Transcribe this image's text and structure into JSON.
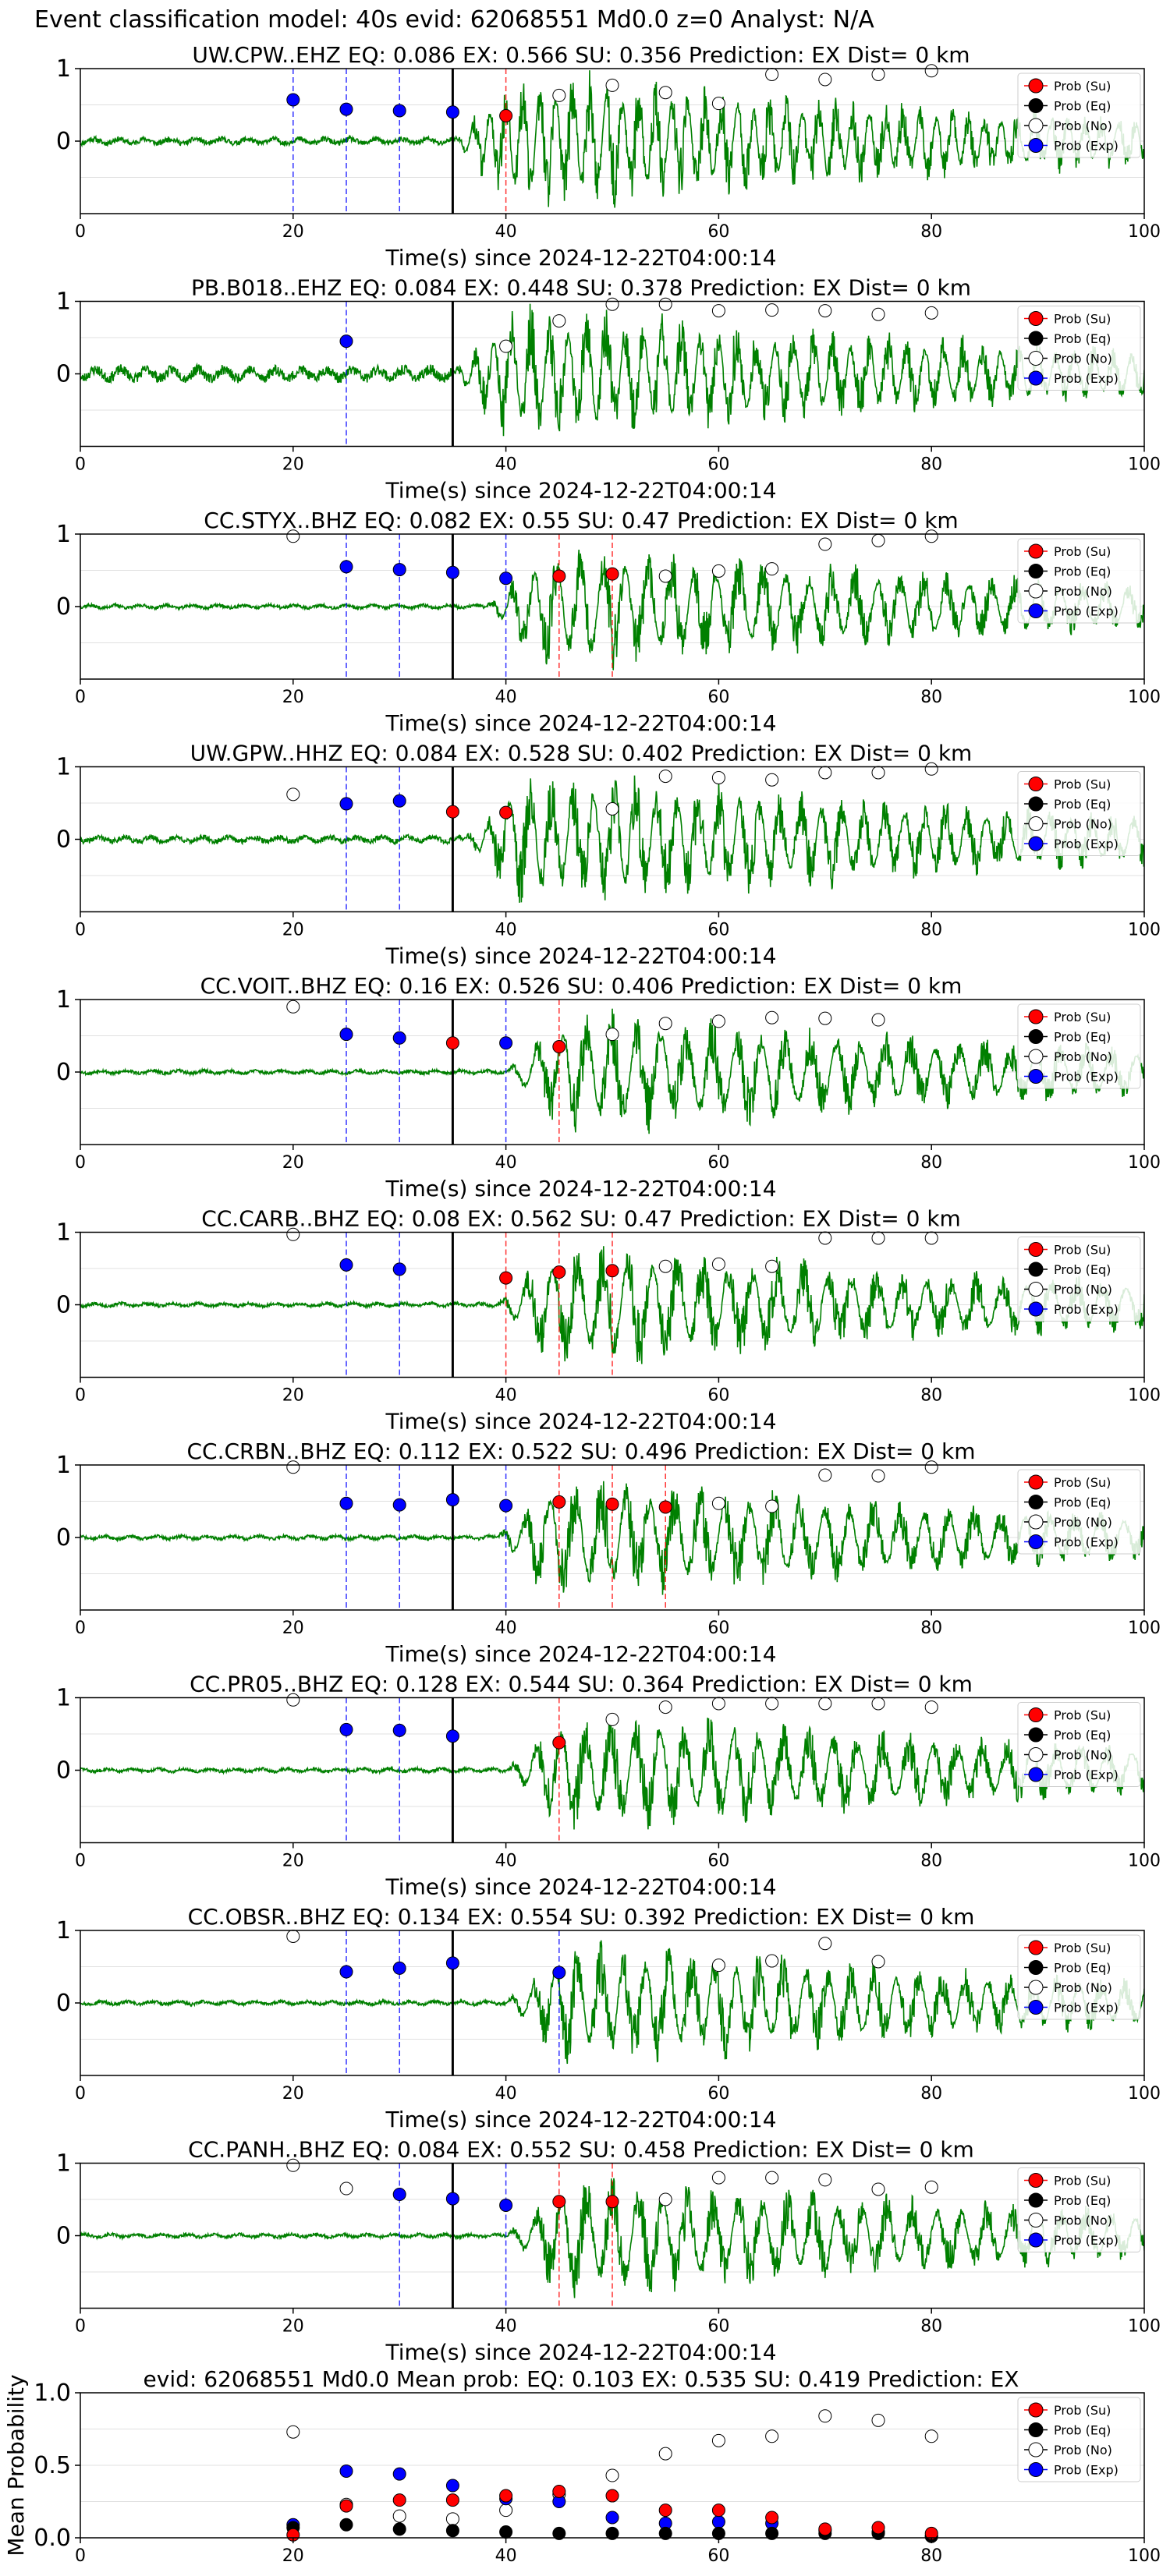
{
  "figure": {
    "title": "Event classification model: 40s evid: 62068551 Md0.0 z=0 Analyst: N/A"
  },
  "legend": {
    "placement": "right",
    "entries": [
      {
        "label": "Prob (Su)",
        "color": "#ff0000"
      },
      {
        "label": "Prob (Eq)",
        "color": "#000000"
      },
      {
        "label": "Prob (No)",
        "color": "#ffffff"
      },
      {
        "label": "Prob (Exp)",
        "color": "#0000ff"
      }
    ]
  },
  "colors": {
    "waveform": "#008000",
    "pick": "#000000",
    "exp_window": "#0000ff",
    "su_window": "#ff0000"
  },
  "chart_data": [
    {
      "type": "line",
      "title": "UW.CPW..EHZ   EQ: 0.086  EX: 0.566  SU: 0.356   Prediction: EX    Dist= 0 km",
      "xlabel": "Time(s) since 2024-12-22T04:00:14",
      "ylabel": "",
      "xlim": [
        0,
        100
      ],
      "ylim": [
        -1,
        1
      ],
      "xticks": [
        "0",
        "20",
        "40",
        "60",
        "80",
        "100"
      ],
      "yticks": [
        "0",
        "1"
      ],
      "grid": "y",
      "onset": 35,
      "pick_line": 35,
      "amp": 1.0,
      "noise": 0.05,
      "seed": 11,
      "wave_period": 1.6,
      "blue_lines": [
        20,
        25,
        30
      ],
      "red_lines": [
        40
      ],
      "points": {
        "Su": [
          [
            40,
            0.35
          ]
        ],
        "Eq": [],
        "No": [
          [
            45,
            0.63
          ],
          [
            50,
            0.77
          ],
          [
            55,
            0.67
          ],
          [
            60,
            0.52
          ],
          [
            65,
            0.92
          ],
          [
            70,
            0.85
          ],
          [
            75,
            0.92
          ],
          [
            80,
            0.97
          ]
        ],
        "Exp": [
          [
            20,
            0.57
          ],
          [
            25,
            0.44
          ],
          [
            30,
            0.42
          ],
          [
            35,
            0.4
          ]
        ]
      }
    },
    {
      "type": "line",
      "title": "PB.B018..EHZ   EQ: 0.084  EX: 0.448  SU: 0.378   Prediction: EX    Dist= 0 km",
      "xlabel": "Time(s) since 2024-12-22T04:00:14",
      "ylabel": "",
      "xlim": [
        0,
        100
      ],
      "ylim": [
        -1,
        1
      ],
      "xticks": [
        "0",
        "20",
        "40",
        "60",
        "80",
        "100"
      ],
      "yticks": [
        "0",
        "1"
      ],
      "grid": "y",
      "onset": 35,
      "pick_line": 35,
      "amp": 1.0,
      "noise": 0.1,
      "seed": 23,
      "wave_period": 1.8,
      "blue_lines": [
        25
      ],
      "red_lines": [],
      "points": {
        "Su": [],
        "Eq": [],
        "No": [
          [
            40,
            0.38
          ],
          [
            45,
            0.73
          ],
          [
            50,
            0.96
          ],
          [
            55,
            0.96
          ],
          [
            60,
            0.87
          ],
          [
            65,
            0.88
          ],
          [
            70,
            0.87
          ],
          [
            75,
            0.82
          ],
          [
            80,
            0.84
          ]
        ],
        "Exp": [
          [
            25,
            0.45
          ]
        ]
      }
    },
    {
      "type": "line",
      "title": "CC.STYX..BHZ   EQ: 0.082  EX: 0.55  SU: 0.47   Prediction: EX    Dist= 0 km",
      "xlabel": "Time(s) since 2024-12-22T04:00:14",
      "ylabel": "",
      "xlim": [
        0,
        100
      ],
      "ylim": [
        -1,
        1
      ],
      "xticks": [
        "0",
        "20",
        "40",
        "60",
        "80",
        "100"
      ],
      "yticks": [
        "0",
        "1"
      ],
      "grid": "y",
      "onset": 38,
      "pick_line": 35,
      "amp": 0.9,
      "noise": 0.03,
      "seed": 37,
      "wave_period": 2.2,
      "blue_lines": [
        25,
        30,
        40
      ],
      "red_lines": [
        45,
        50
      ],
      "points": {
        "Su": [
          [
            45,
            0.42
          ],
          [
            50,
            0.45
          ]
        ],
        "Eq": [],
        "No": [
          [
            20,
            0.97
          ],
          [
            55,
            0.42
          ],
          [
            60,
            0.49
          ],
          [
            65,
            0.52
          ],
          [
            70,
            0.86
          ],
          [
            75,
            0.91
          ],
          [
            80,
            0.97
          ]
        ],
        "Exp": [
          [
            25,
            0.55
          ],
          [
            30,
            0.51
          ],
          [
            35,
            0.47
          ],
          [
            40,
            0.39
          ]
        ]
      }
    },
    {
      "type": "line",
      "title": "UW.GPW..HHZ   EQ: 0.084  EX: 0.528  SU: 0.402   Prediction: EX    Dist= 0 km",
      "xlabel": "Time(s) since 2024-12-22T04:00:14",
      "ylabel": "",
      "xlim": [
        0,
        100
      ],
      "ylim": [
        -1,
        1
      ],
      "xticks": [
        "0",
        "20",
        "40",
        "60",
        "80",
        "100"
      ],
      "yticks": [
        "0",
        "1"
      ],
      "grid": "y",
      "onset": 36,
      "pick_line": 35,
      "amp": 1.0,
      "noise": 0.05,
      "seed": 41,
      "wave_period": 2.0,
      "blue_lines": [
        25,
        30
      ],
      "red_lines": [],
      "points": {
        "Su": [
          [
            35,
            0.38
          ],
          [
            40,
            0.37
          ]
        ],
        "Eq": [],
        "No": [
          [
            20,
            0.62
          ],
          [
            50,
            0.42
          ],
          [
            55,
            0.87
          ],
          [
            60,
            0.85
          ],
          [
            65,
            0.82
          ],
          [
            70,
            0.92
          ],
          [
            75,
            0.92
          ],
          [
            80,
            0.97
          ]
        ],
        "Exp": [
          [
            25,
            0.49
          ],
          [
            30,
            0.53
          ]
        ]
      }
    },
    {
      "type": "line",
      "title": "CC.VOIT..BHZ   EQ: 0.16  EX: 0.526  SU: 0.406   Prediction: EX    Dist= 0 km",
      "xlabel": "Time(s) since 2024-12-22T04:00:14",
      "ylabel": "",
      "xlim": [
        0,
        100
      ],
      "ylim": [
        -1,
        1
      ],
      "xticks": [
        "0",
        "20",
        "40",
        "60",
        "80",
        "100"
      ],
      "yticks": [
        "0",
        "1"
      ],
      "grid": "y",
      "onset": 40,
      "pick_line": 35,
      "amp": 0.9,
      "noise": 0.03,
      "seed": 53,
      "wave_period": 2.4,
      "blue_lines": [
        25,
        30,
        40
      ],
      "red_lines": [
        45
      ],
      "points": {
        "Su": [
          [
            35,
            0.4
          ],
          [
            45,
            0.35
          ]
        ],
        "Eq": [],
        "No": [
          [
            20,
            0.9
          ],
          [
            50,
            0.52
          ],
          [
            55,
            0.67
          ],
          [
            60,
            0.7
          ],
          [
            65,
            0.75
          ],
          [
            70,
            0.74
          ],
          [
            75,
            0.72
          ]
        ],
        "Exp": [
          [
            25,
            0.52
          ],
          [
            30,
            0.47
          ],
          [
            40,
            0.4
          ]
        ]
      }
    },
    {
      "type": "line",
      "title": "CC.CARB..BHZ   EQ: 0.08  EX: 0.562  SU: 0.47   Prediction: EX    Dist= 0 km",
      "xlabel": "Time(s) since 2024-12-22T04:00:14",
      "ylabel": "",
      "xlim": [
        0,
        100
      ],
      "ylim": [
        -1,
        1
      ],
      "xticks": [
        "0",
        "20",
        "40",
        "60",
        "80",
        "100"
      ],
      "yticks": [
        "0",
        "1"
      ],
      "grid": "y",
      "onset": 39,
      "pick_line": 35,
      "amp": 0.9,
      "noise": 0.03,
      "seed": 67,
      "wave_period": 2.4,
      "blue_lines": [
        25,
        30
      ],
      "red_lines": [
        40,
        45,
        50
      ],
      "points": {
        "Su": [
          [
            40,
            0.37
          ],
          [
            45,
            0.45
          ],
          [
            50,
            0.47
          ]
        ],
        "Eq": [],
        "No": [
          [
            20,
            0.97
          ],
          [
            55,
            0.53
          ],
          [
            60,
            0.56
          ],
          [
            65,
            0.53
          ],
          [
            70,
            0.92
          ],
          [
            75,
            0.92
          ],
          [
            80,
            0.92
          ]
        ],
        "Exp": [
          [
            25,
            0.55
          ],
          [
            30,
            0.49
          ]
        ]
      }
    },
    {
      "type": "line",
      "title": "CC.CRBN..BHZ   EQ: 0.112  EX: 0.522  SU: 0.496   Prediction: EX    Dist= 0 km",
      "xlabel": "Time(s) since 2024-12-22T04:00:14",
      "ylabel": "",
      "xlim": [
        0,
        100
      ],
      "ylim": [
        -1,
        1
      ],
      "xticks": [
        "0",
        "20",
        "40",
        "60",
        "80",
        "100"
      ],
      "yticks": [
        "0",
        "1"
      ],
      "grid": "y",
      "onset": 39,
      "pick_line": 35,
      "amp": 0.9,
      "noise": 0.03,
      "seed": 71,
      "wave_period": 2.4,
      "blue_lines": [
        25,
        30,
        40
      ],
      "red_lines": [
        45,
        50,
        55
      ],
      "points": {
        "Su": [
          [
            45,
            0.49
          ],
          [
            50,
            0.46
          ],
          [
            55,
            0.42
          ]
        ],
        "Eq": [],
        "No": [
          [
            20,
            0.97
          ],
          [
            60,
            0.47
          ],
          [
            65,
            0.43
          ],
          [
            70,
            0.86
          ],
          [
            75,
            0.85
          ],
          [
            80,
            0.97
          ]
        ],
        "Exp": [
          [
            25,
            0.47
          ],
          [
            30,
            0.45
          ],
          [
            35,
            0.52
          ],
          [
            40,
            0.44
          ]
        ]
      }
    },
    {
      "type": "line",
      "title": "CC.PR05..BHZ   EQ: 0.128  EX: 0.544  SU: 0.364   Prediction: EX    Dist= 0 km",
      "xlabel": "Time(s) since 2024-12-22T04:00:14",
      "ylabel": "",
      "xlim": [
        0,
        100
      ],
      "ylim": [
        -1,
        1
      ],
      "xticks": [
        "0",
        "20",
        "40",
        "60",
        "80",
        "100"
      ],
      "yticks": [
        "0",
        "1"
      ],
      "grid": "y",
      "onset": 40,
      "pick_line": 35,
      "amp": 0.9,
      "noise": 0.03,
      "seed": 83,
      "wave_period": 2.4,
      "blue_lines": [
        25,
        30
      ],
      "red_lines": [
        45
      ],
      "points": {
        "Su": [
          [
            45,
            0.38
          ]
        ],
        "Eq": [],
        "No": [
          [
            20,
            0.97
          ],
          [
            50,
            0.7
          ],
          [
            55,
            0.87
          ],
          [
            60,
            0.92
          ],
          [
            65,
            0.92
          ],
          [
            70,
            0.92
          ],
          [
            75,
            0.92
          ],
          [
            80,
            0.87
          ]
        ],
        "Exp": [
          [
            25,
            0.56
          ],
          [
            30,
            0.55
          ],
          [
            35,
            0.47
          ]
        ]
      }
    },
    {
      "type": "line",
      "title": "CC.OBSR..BHZ   EQ: 0.134  EX: 0.554  SU: 0.392   Prediction: EX    Dist= 0 km",
      "xlabel": "Time(s) since 2024-12-22T04:00:14",
      "ylabel": "",
      "xlim": [
        0,
        100
      ],
      "ylim": [
        -1,
        1
      ],
      "xticks": [
        "0",
        "20",
        "40",
        "60",
        "80",
        "100"
      ],
      "yticks": [
        "0",
        "1"
      ],
      "grid": "y",
      "onset": 40,
      "pick_line": 35,
      "amp": 0.9,
      "noise": 0.03,
      "seed": 97,
      "wave_period": 2.2,
      "blue_lines": [
        25,
        30,
        45
      ],
      "red_lines": [],
      "points": {
        "Su": [],
        "Eq": [],
        "No": [
          [
            20,
            0.92
          ],
          [
            60,
            0.52
          ],
          [
            65,
            0.58
          ],
          [
            70,
            0.82
          ],
          [
            75,
            0.57
          ]
        ],
        "Exp": [
          [
            25,
            0.43
          ],
          [
            30,
            0.48
          ],
          [
            35,
            0.55
          ],
          [
            45,
            0.42
          ]
        ]
      }
    },
    {
      "type": "line",
      "title": "CC.PANH..BHZ   EQ: 0.084  EX: 0.552  SU: 0.458   Prediction: EX    Dist= 0 km",
      "xlabel": "Time(s) since 2024-12-22T04:00:14",
      "ylabel": "",
      "xlim": [
        0,
        100
      ],
      "ylim": [
        -1,
        1
      ],
      "xticks": [
        "0",
        "20",
        "40",
        "60",
        "80",
        "100"
      ],
      "yticks": [
        "0",
        "1"
      ],
      "grid": "y",
      "onset": 40,
      "pick_line": 35,
      "amp": 0.9,
      "noise": 0.03,
      "seed": 101,
      "wave_period": 2.4,
      "blue_lines": [
        30,
        40
      ],
      "red_lines": [
        45,
        50
      ],
      "points": {
        "Su": [
          [
            45,
            0.47
          ],
          [
            50,
            0.47
          ]
        ],
        "Eq": [],
        "No": [
          [
            20,
            0.97
          ],
          [
            25,
            0.65
          ],
          [
            55,
            0.5
          ],
          [
            60,
            0.8
          ],
          [
            65,
            0.8
          ],
          [
            70,
            0.77
          ],
          [
            75,
            0.64
          ],
          [
            80,
            0.67
          ]
        ],
        "Exp": [
          [
            30,
            0.57
          ],
          [
            35,
            0.51
          ],
          [
            40,
            0.42
          ]
        ]
      }
    },
    {
      "type": "scatter",
      "title": "evid: 62068551   Md0.0   Mean prob:   EQ: 0.103  EX: 0.535  SU: 0.419   Prediction: EX",
      "xlabel": "",
      "ylabel": "Mean Probability",
      "xlim": [
        0,
        100
      ],
      "ylim": [
        0,
        1
      ],
      "xticks": [
        "0",
        "20",
        "40",
        "60",
        "80",
        "100"
      ],
      "yticks": [
        "0.0",
        "0.5",
        "1.0"
      ],
      "grid": "y",
      "points": {
        "Su": [
          [
            20,
            0.02
          ],
          [
            25,
            0.22
          ],
          [
            30,
            0.26
          ],
          [
            35,
            0.26
          ],
          [
            40,
            0.29
          ],
          [
            45,
            0.32
          ],
          [
            50,
            0.29
          ],
          [
            55,
            0.19
          ],
          [
            60,
            0.19
          ],
          [
            65,
            0.14
          ],
          [
            70,
            0.06
          ],
          [
            75,
            0.07
          ],
          [
            80,
            0.03
          ]
        ],
        "Eq": [
          [
            20,
            0.07
          ],
          [
            25,
            0.09
          ],
          [
            30,
            0.06
          ],
          [
            35,
            0.05
          ],
          [
            40,
            0.04
          ],
          [
            45,
            0.03
          ],
          [
            50,
            0.03
          ],
          [
            55,
            0.03
          ],
          [
            60,
            0.03
          ],
          [
            65,
            0.03
          ],
          [
            70,
            0.03
          ],
          [
            75,
            0.03
          ],
          [
            80,
            0.01
          ]
        ],
        "No": [
          [
            20,
            0.73
          ],
          [
            25,
            0.23
          ],
          [
            30,
            0.15
          ],
          [
            35,
            0.13
          ],
          [
            40,
            0.19
          ],
          [
            45,
            0.3
          ],
          [
            50,
            0.43
          ],
          [
            55,
            0.58
          ],
          [
            60,
            0.67
          ],
          [
            65,
            0.7
          ],
          [
            70,
            0.84
          ],
          [
            75,
            0.81
          ],
          [
            80,
            0.7
          ]
        ],
        "Exp": [
          [
            20,
            0.09
          ],
          [
            25,
            0.46
          ],
          [
            30,
            0.44
          ],
          [
            35,
            0.36
          ],
          [
            40,
            0.27
          ],
          [
            45,
            0.25
          ],
          [
            50,
            0.14
          ],
          [
            55,
            0.1
          ],
          [
            60,
            0.11
          ],
          [
            65,
            0.1
          ],
          [
            70,
            0.05
          ],
          [
            75,
            0.04
          ],
          [
            80,
            0.01
          ]
        ]
      }
    }
  ]
}
